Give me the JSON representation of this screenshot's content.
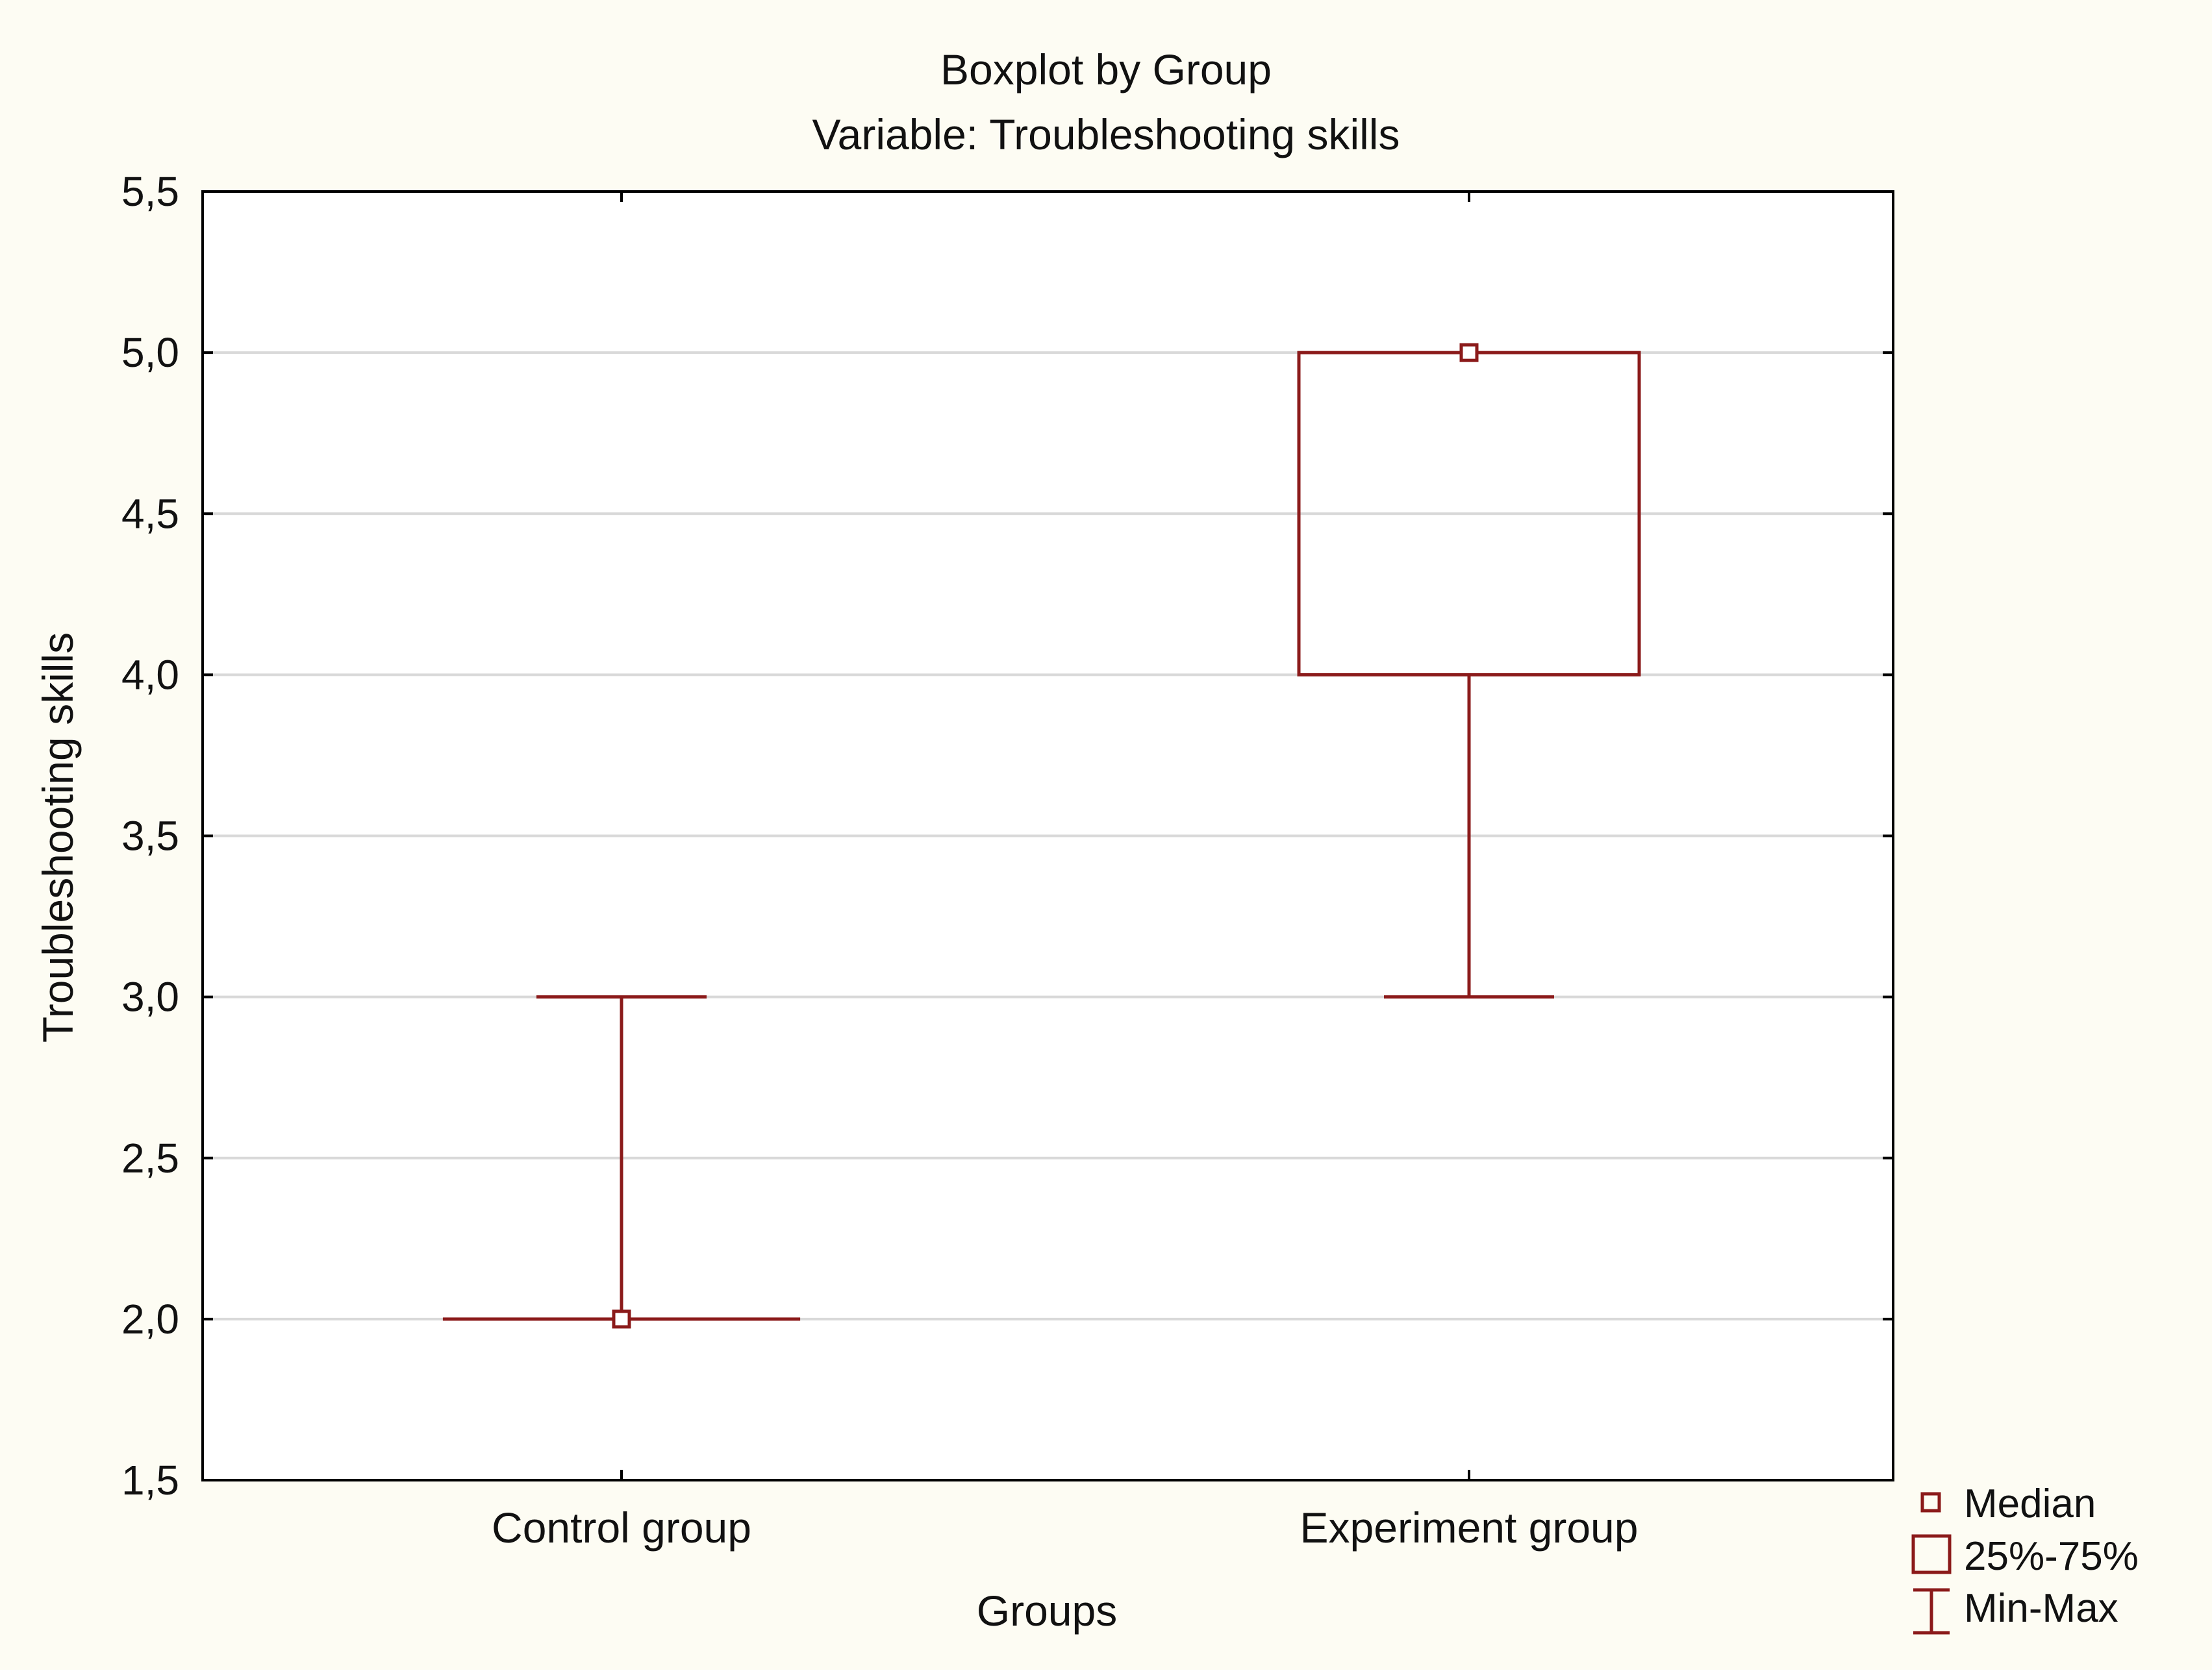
{
  "chart_data": {
    "type": "boxplot",
    "title": "Boxplot by Group",
    "subtitle": "Variable: Troubleshooting skills",
    "xlabel": "Groups",
    "ylabel": "Troubleshooting skills",
    "ylim": [
      1.5,
      5.5
    ],
    "yticks": [
      1.5,
      2.0,
      2.5,
      3.0,
      3.5,
      4.0,
      4.5,
      5.0,
      5.5
    ],
    "ytick_labels": [
      "1,5",
      "2,0",
      "2,5",
      "3,0",
      "3,5",
      "4,0",
      "4,5",
      "5,0",
      "5,5"
    ],
    "grid": true,
    "categories": [
      "Control group",
      "Experiment group"
    ],
    "boxes": [
      {
        "name": "Control group",
        "min": 2.0,
        "q1": 2.0,
        "median": 2.0,
        "q3": 2.0,
        "max": 3.0
      },
      {
        "name": "Experiment group",
        "min": 3.0,
        "q1": 4.0,
        "median": 5.0,
        "q3": 5.0,
        "max": 5.0
      }
    ],
    "legend": {
      "position": "bottom-right",
      "entries": [
        "Median",
        "25%-75%",
        "Min-Max"
      ]
    },
    "colors": {
      "series": "#8b1a1a",
      "background": "#fdfcf3",
      "plot_background": "#ffffff",
      "grid": "#d9d9d9",
      "axis": "#000000",
      "text": "#111111"
    }
  }
}
